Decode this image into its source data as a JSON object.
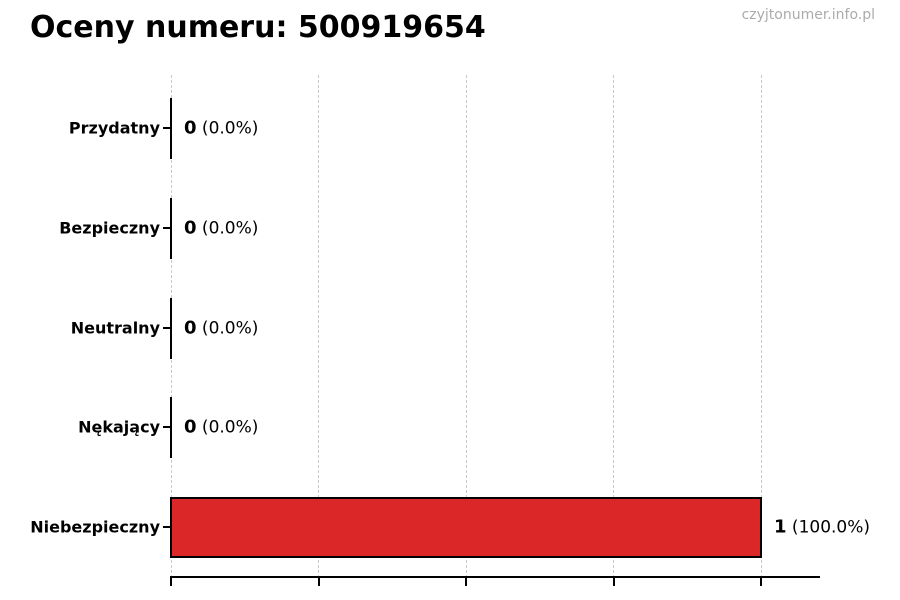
{
  "header": {
    "title": "Oceny numeru: 500919654",
    "watermark": "czyjtonumer.info.pl"
  },
  "chart_data": {
    "type": "bar",
    "orientation": "horizontal",
    "title": "Oceny numeru: 500919654",
    "categories": [
      "Przydatny",
      "Bezpieczny",
      "Neutralny",
      "Nękający",
      "Niebezpieczny"
    ],
    "values": [
      0,
      0,
      0,
      0,
      1
    ],
    "bars": [
      {
        "category": "Przydatny",
        "value": 0,
        "count_label": "0",
        "percent_label": "(0.0%)"
      },
      {
        "category": "Bezpieczny",
        "value": 0,
        "count_label": "0",
        "percent_label": "(0.0%)"
      },
      {
        "category": "Neutralny",
        "value": 0,
        "count_label": "0",
        "percent_label": "(0.0%)"
      },
      {
        "category": "Nękający",
        "value": 0,
        "count_label": "0",
        "percent_label": "(0.0%)"
      },
      {
        "category": "Niebezpieczny",
        "value": 1,
        "count_label": "1",
        "percent_label": "(100.0%)"
      }
    ],
    "xlim": [
      0,
      1.1
    ],
    "xticks": [
      0,
      0.25,
      0.5,
      0.75,
      1.0
    ],
    "xtick_labels_visible": false,
    "grid": "vertical dashed",
    "legend": "none",
    "colors": {
      "bar_fill": "#dc2728",
      "bar_edge": "#000000",
      "grid_line": "#c9c9c9",
      "axis": "#000000",
      "text": "#000000",
      "watermark": "#ababab",
      "background": "#ffffff"
    }
  }
}
